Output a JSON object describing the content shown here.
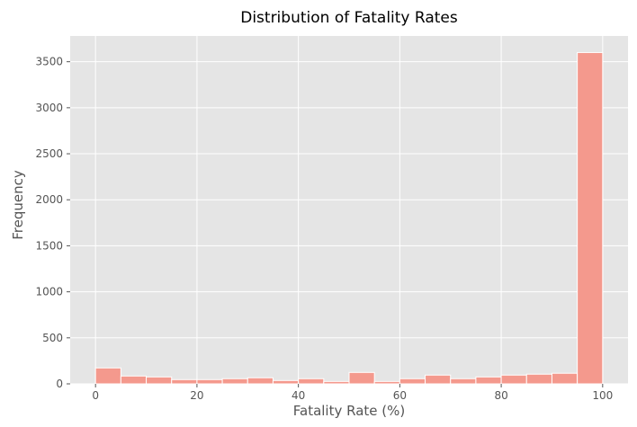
{
  "chart_data": {
    "type": "bar",
    "title": "Distribution of Fatality Rates",
    "xlabel": "Fatality Rate (%)",
    "ylabel": "Frequency",
    "bin_edges": [
      0,
      5,
      10,
      15,
      20,
      25,
      30,
      35,
      40,
      45,
      50,
      55,
      60,
      65,
      70,
      75,
      80,
      85,
      90,
      95,
      100
    ],
    "values": [
      173,
      85,
      75,
      46,
      46,
      56,
      66,
      36,
      56,
      26,
      124,
      26,
      56,
      95,
      56,
      75,
      95,
      105,
      115,
      3600
    ],
    "xlim": [
      -5,
      105
    ],
    "ylim": [
      0,
      3780
    ],
    "xticks": [
      0,
      20,
      40,
      60,
      80,
      100
    ],
    "yticks": [
      0,
      500,
      1000,
      1500,
      2000,
      2500,
      3000,
      3500
    ],
    "grid": true,
    "bar_color": "#f4998d",
    "background": "#e5e5e5"
  }
}
